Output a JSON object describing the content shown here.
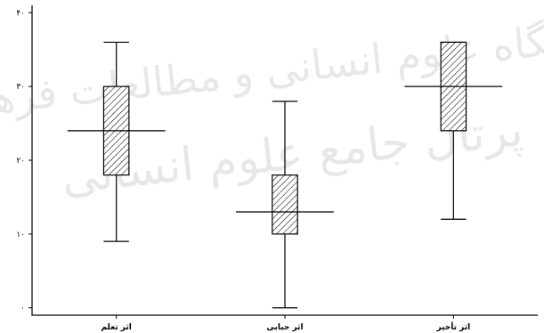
{
  "watermark": {
    "line1": "پژوهشگاه علوم انسانی و مطالعات فرهنگی",
    "line2": "پرتال جامع علوم انسانی"
  },
  "chart_data": {
    "type": "box",
    "title": "",
    "xlabel": "",
    "ylabel": "",
    "ylim": [
      -1,
      41
    ],
    "yticks": [
      0,
      10,
      20,
      30,
      40
    ],
    "ytick_labels": [
      "۰",
      "۱۰",
      "۲۰",
      "۳۰",
      "۴۰"
    ],
    "grid": false,
    "categories": [
      "اثر تعلم",
      "اثر حبابی",
      "اثر تأخیر"
    ],
    "boxes": [
      {
        "min": 9,
        "q1": 18,
        "median": 24,
        "q3": 30,
        "max": 36
      },
      {
        "min": 0,
        "q1": 10,
        "median": 13,
        "q3": 18,
        "max": 28
      },
      {
        "min": 12,
        "q1": 24,
        "median": 30,
        "q3": 36,
        "max": 36
      }
    ]
  }
}
